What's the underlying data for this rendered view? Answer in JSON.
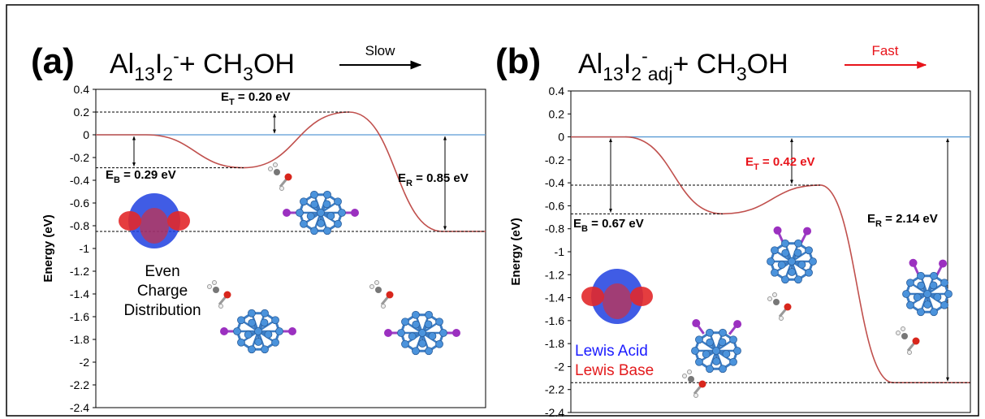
{
  "chart_data": [
    {
      "type": "line",
      "panel_label": "(a)",
      "title_parts": [
        "Al",
        "13",
        "I",
        "2",
        "-",
        "+ CH",
        "3",
        "OH"
      ],
      "arrow_label": "Slow",
      "arrow_color": "#000000",
      "ylabel": "Energy (eV)",
      "ylim": [
        -2.4,
        0.4
      ],
      "yticks": [
        0.4,
        0.2,
        0,
        -0.2,
        -0.4,
        -0.6,
        -0.8,
        -1,
        -1.2,
        -1.4,
        -1.6,
        -1.8,
        -2,
        -2.2,
        -2.4
      ],
      "categories": [
        null,
        null,
        null,
        null
      ],
      "series": [
        {
          "color": "#c0504d",
          "values": [
            0,
            -0.29,
            0.2,
            -0.85
          ]
        }
      ],
      "zero_line_color": "#5b9bd5",
      "annotations": [
        {
          "parts": [
            "E",
            "T",
            " = 0.20 eV"
          ],
          "color": "#000000"
        },
        {
          "parts": [
            "E",
            "B",
            " = 0.29 eV"
          ],
          "color": "#000000"
        },
        {
          "parts": [
            "E",
            "R",
            " = 0.85 eV"
          ],
          "color": "#000000"
        }
      ],
      "notes": [
        {
          "text": "Even",
          "color": "#000000"
        },
        {
          "text": "Charge",
          "color": "#000000"
        },
        {
          "text": "Distribution",
          "color": "#000000"
        }
      ]
    },
    {
      "type": "line",
      "panel_label": "(b)",
      "title_parts": [
        "Al",
        "13",
        "I",
        "2",
        "-",
        "adj",
        "+ CH",
        "3",
        "OH"
      ],
      "arrow_label": "Fast",
      "arrow_color": "#e8141b",
      "ylabel": "Energy (eV)",
      "ylim": [
        -2.4,
        0.4
      ],
      "yticks": [
        0.4,
        0.2,
        0,
        -0.2,
        -0.4,
        -0.6,
        -0.8,
        -1,
        -1.2,
        -1.4,
        -1.6,
        -1.8,
        -2,
        -2.2,
        -2.4
      ],
      "categories": [
        null,
        null,
        null,
        null
      ],
      "series": [
        {
          "color": "#c0504d",
          "values": [
            0,
            -0.67,
            -0.42,
            -2.14
          ]
        }
      ],
      "zero_line_color": "#5b9bd5",
      "annotations": [
        {
          "parts": [
            "E",
            "T",
            " = 0.42 eV"
          ],
          "color": "#e8141b"
        },
        {
          "parts": [
            "E",
            "B",
            " = 0.67 eV"
          ],
          "color": "#000000"
        },
        {
          "parts": [
            "E",
            "R",
            " = 2.14 eV"
          ],
          "color": "#000000"
        }
      ],
      "notes": [
        {
          "text": "Lewis Acid",
          "color": "#1a1aff"
        },
        {
          "text": "Lewis Base",
          "color": "#e31a1c"
        }
      ]
    }
  ]
}
